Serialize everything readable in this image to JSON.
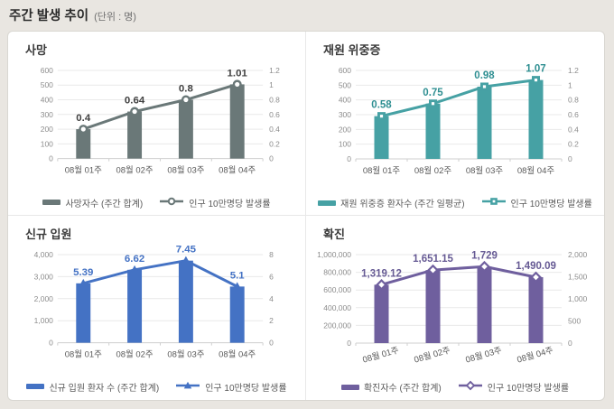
{
  "page": {
    "title": "주간 발생 추이",
    "unit_label": "(단위 : 명)"
  },
  "chart_data": [
    {
      "type": "bar",
      "title": "사망",
      "categories": [
        "08월 01주",
        "08월 02주",
        "08월 03주",
        "08월 04주"
      ],
      "bar_series": {
        "name": "사망자수 (주간 합계)",
        "axis": "left",
        "values": [
          200,
          320,
          400,
          505
        ]
      },
      "line_series": {
        "name": "인구 10만명당 발생률",
        "axis": "right",
        "values": [
          0.4,
          0.64,
          0.8,
          1.01
        ],
        "labels": [
          "0.4",
          "0.64",
          "0.8",
          "1.01"
        ]
      },
      "left_axis": {
        "max": 600,
        "ticks": [
          "600",
          "500",
          "400",
          "300",
          "200",
          "100",
          "0"
        ]
      },
      "right_axis": {
        "max": 1.2,
        "ticks": [
          "1.2",
          "1",
          "0.8",
          "0.6",
          "0.4",
          "0.2",
          "0"
        ]
      },
      "colors": {
        "bar": "#6a7878",
        "line": "#6a7878",
        "label": "#404040"
      },
      "marker": "circle",
      "x_label_rotation": 0,
      "grid": true,
      "legend_position": "bottom"
    },
    {
      "type": "bar",
      "title": "재원 위중증",
      "categories": [
        "08월 01주",
        "08월 02주",
        "08월 03주",
        "08월 04주"
      ],
      "bar_series": {
        "name": "재원 위중증 환자수 (주간 일평균)",
        "axis": "left",
        "values": [
          290,
          375,
          490,
          535
        ]
      },
      "line_series": {
        "name": "인구 10만명당 발생률",
        "axis": "right",
        "values": [
          0.58,
          0.75,
          0.98,
          1.07
        ],
        "labels": [
          "0.58",
          "0.75",
          "0.98",
          "1.07"
        ]
      },
      "left_axis": {
        "max": 600,
        "ticks": [
          "600",
          "500",
          "400",
          "300",
          "200",
          "100",
          "0"
        ]
      },
      "right_axis": {
        "max": 1.2,
        "ticks": [
          "1.2",
          "1",
          "0.8",
          "0.6",
          "0.4",
          "0.2",
          "0"
        ]
      },
      "colors": {
        "bar": "#46a1a4",
        "line": "#46a1a4",
        "label": "#2f8f92"
      },
      "marker": "square",
      "x_label_rotation": 0,
      "grid": true,
      "legend_position": "bottom"
    },
    {
      "type": "bar",
      "title": "신규 입원",
      "categories": [
        "08월 01주",
        "08월 02주",
        "08월 03주",
        "08월 04주"
      ],
      "bar_series": {
        "name": "신규 입원 환자 수 (주간 합계)",
        "axis": "left",
        "values": [
          2695,
          3310,
          3725,
          2550
        ]
      },
      "line_series": {
        "name": "인구 10만명당 발생률",
        "axis": "right",
        "values": [
          5.39,
          6.62,
          7.45,
          5.1
        ],
        "labels": [
          "5.39",
          "6.62",
          "7.45",
          "5.1"
        ]
      },
      "left_axis": {
        "max": 4000,
        "ticks": [
          "4,000",
          "3,000",
          "2,000",
          "1,000",
          "0"
        ]
      },
      "right_axis": {
        "max": 8,
        "ticks": [
          "8",
          "6",
          "4",
          "2",
          "0"
        ]
      },
      "colors": {
        "bar": "#4472c4",
        "line": "#4472c4",
        "label": "#4472c4"
      },
      "marker": "triangle",
      "x_label_rotation": 0,
      "grid": true,
      "legend_position": "bottom"
    },
    {
      "type": "bar",
      "title": "확진",
      "categories": [
        "08월 01주",
        "08월 02주",
        "08월 03주",
        "08월 04주"
      ],
      "bar_series": {
        "name": "확진자수 (주간 합계)",
        "axis": "left",
        "values": [
          659560,
          825575,
          864500,
          745045
        ]
      },
      "line_series": {
        "name": "인구 10만명당 발생률",
        "axis": "right",
        "values": [
          1319.12,
          1651.15,
          1729,
          1490.09
        ],
        "labels": [
          "1,319.12",
          "1,651.15",
          "1,729",
          "1,490.09"
        ]
      },
      "left_axis": {
        "max": 1000000,
        "ticks": [
          "1,000,000",
          "800,000",
          "600,000",
          "400,000",
          "200,000",
          "0"
        ]
      },
      "right_axis": {
        "max": 2000,
        "ticks": [
          "2,000",
          "1,500",
          "1,000",
          "500",
          "0"
        ]
      },
      "colors": {
        "bar": "#6f5f9e",
        "line": "#6f5f9e",
        "label": "#665a94"
      },
      "marker": "diamond",
      "x_label_rotation": -16,
      "grid": true,
      "legend_position": "bottom"
    }
  ]
}
